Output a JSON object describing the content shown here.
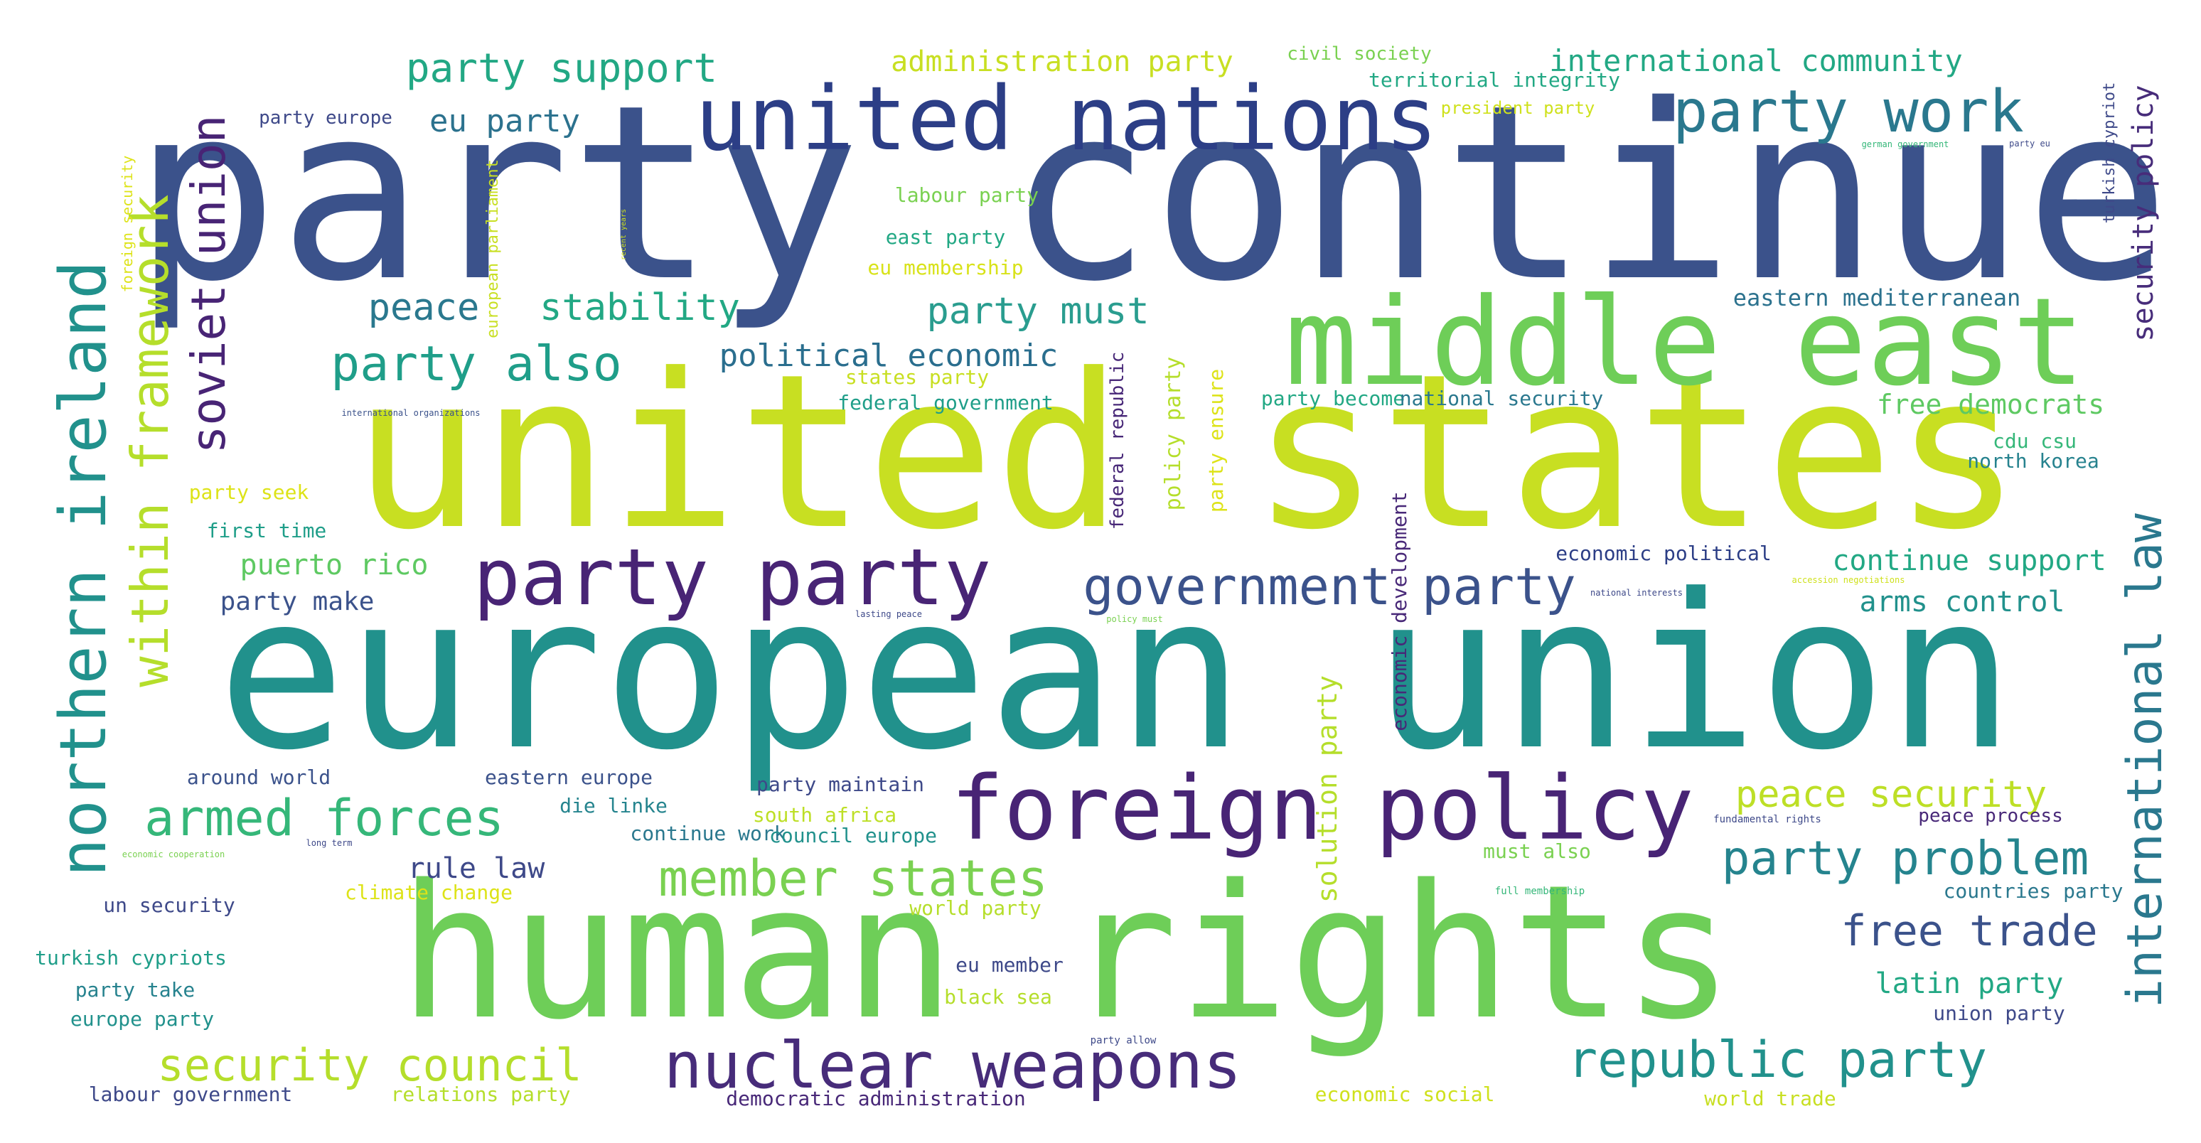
{
  "words": [
    {
      "text": "party continue",
      "color": "#3b528b"
    },
    {
      "text": "united states",
      "color": "#c8df22"
    },
    {
      "text": "european union",
      "color": "#21918c"
    },
    {
      "text": "human rights",
      "color": "#6ece58"
    },
    {
      "text": "middle east",
      "color": "#6ece58"
    },
    {
      "text": "united nations",
      "color": "#2c3e86"
    },
    {
      "text": "foreign policy",
      "color": "#482475"
    },
    {
      "text": "party party",
      "color": "#482475"
    },
    {
      "text": "nuclear weapons",
      "color": "#472c7a"
    },
    {
      "text": "northern ireland",
      "color": "#21918c"
    },
    {
      "text": "within framework",
      "color": "#b5de2b"
    },
    {
      "text": "soviet union",
      "color": "#482475"
    },
    {
      "text": "international law",
      "color": "#2a788e"
    },
    {
      "text": "party work",
      "color": "#2a788e"
    },
    {
      "text": "government party",
      "color": "#3b528b"
    },
    {
      "text": "armed forces",
      "color": "#35b779"
    },
    {
      "text": "member states",
      "color": "#7ad151"
    },
    {
      "text": "republic party",
      "color": "#21918c"
    },
    {
      "text": "security council",
      "color": "#b5de2b"
    },
    {
      "text": "party problem",
      "color": "#25848e"
    },
    {
      "text": "free trade",
      "color": "#3b528b"
    },
    {
      "text": "party support",
      "color": "#22a884"
    },
    {
      "text": "party also",
      "color": "#1f9e89"
    },
    {
      "text": "stability",
      "color": "#22a884"
    },
    {
      "text": "peace",
      "color": "#2a788e"
    },
    {
      "text": "party must",
      "color": "#2a9d8f"
    },
    {
      "text": "peace security",
      "color": "#bddf26"
    },
    {
      "text": "eu party",
      "color": "#2c728e"
    },
    {
      "text": "political economic",
      "color": "#2a6e8e"
    },
    {
      "text": "administration party",
      "color": "#c8df22"
    },
    {
      "text": "international community",
      "color": "#22a884"
    },
    {
      "text": "security policy",
      "color": "#472c7a"
    },
    {
      "text": "solution party",
      "color": "#b5de2b"
    },
    {
      "text": "free democrats",
      "color": "#5ec962"
    },
    {
      "text": "latin party",
      "color": "#22a884"
    },
    {
      "text": "rule law",
      "color": "#3e4989"
    },
    {
      "text": "puerto rico",
      "color": "#5ec962"
    },
    {
      "text": "continue support",
      "color": "#22a884"
    },
    {
      "text": "arms control",
      "color": "#21918c"
    },
    {
      "text": "eastern mediterranean",
      "color": "#2c728e"
    },
    {
      "text": "party make",
      "color": "#3b528b"
    },
    {
      "text": "economic development",
      "color": "#482878"
    },
    {
      "text": "policy party",
      "color": "#b5de2b"
    },
    {
      "text": "party ensure",
      "color": "#dde318"
    },
    {
      "text": "federal republic",
      "color": "#482878"
    },
    {
      "text": "civil society",
      "color": "#7ad151"
    },
    {
      "text": "territorial integrity",
      "color": "#22a884"
    },
    {
      "text": "president party",
      "color": "#cfe11c"
    },
    {
      "text": "labour party",
      "color": "#7ad151"
    },
    {
      "text": "east party",
      "color": "#22a884"
    },
    {
      "text": "eu membership",
      "color": "#d8e219"
    },
    {
      "text": "states party",
      "color": "#c8df22"
    },
    {
      "text": "federal government",
      "color": "#1f9e89"
    },
    {
      "text": "party become",
      "color": "#22a884"
    },
    {
      "text": "national security",
      "color": "#2a788e"
    },
    {
      "text": "cdu csu",
      "color": "#35b779"
    },
    {
      "text": "north korea",
      "color": "#26828e"
    },
    {
      "text": "economic political",
      "color": "#2c3e86"
    },
    {
      "text": "party seek",
      "color": "#dde318"
    },
    {
      "text": "first time",
      "color": "#1f9e89"
    },
    {
      "text": "around world",
      "color": "#3b528b"
    },
    {
      "text": "eastern europe",
      "color": "#3b528b"
    },
    {
      "text": "party maintain",
      "color": "#3e4989"
    },
    {
      "text": "die linke",
      "color": "#25848e"
    },
    {
      "text": "continue work",
      "color": "#2a788e"
    },
    {
      "text": "south africa",
      "color": "#bddf26"
    },
    {
      "text": "council europe",
      "color": "#21918c"
    },
    {
      "text": "climate change",
      "color": "#dde318"
    },
    {
      "text": "un security",
      "color": "#3e4989"
    },
    {
      "text": "turkish cypriots",
      "color": "#1f9e89"
    },
    {
      "text": "party take",
      "color": "#26828e"
    },
    {
      "text": "europe party",
      "color": "#21918c"
    },
    {
      "text": "labour government",
      "color": "#3e4989"
    },
    {
      "text": "relations party",
      "color": "#b5de2b"
    },
    {
      "text": "democratic administration",
      "color": "#482878"
    },
    {
      "text": "economic social",
      "color": "#cfe11c"
    },
    {
      "text": "world trade",
      "color": "#c8df22"
    },
    {
      "text": "union party",
      "color": "#3e4989"
    },
    {
      "text": "countries party",
      "color": "#2a788e"
    },
    {
      "text": "must also",
      "color": "#7ad151"
    },
    {
      "text": "peace process",
      "color": "#482878"
    },
    {
      "text": "world party",
      "color": "#b5de2b"
    },
    {
      "text": "eu member",
      "color": "#3e4989"
    },
    {
      "text": "black sea",
      "color": "#b5de2b"
    },
    {
      "text": "party europe",
      "color": "#3e4989"
    },
    {
      "text": "foreign security",
      "color": "#dde318"
    },
    {
      "text": "european parliament",
      "color": "#c8df22"
    },
    {
      "text": "recent years",
      "color": "#cfe11c"
    },
    {
      "text": "turkish cypriot",
      "color": "#3e4989"
    },
    {
      "text": "german government",
      "color": "#35b779"
    },
    {
      "text": "party eu",
      "color": "#3e4989"
    },
    {
      "text": "international organizations",
      "color": "#3b528b"
    },
    {
      "text": "national interests",
      "color": "#3e4989"
    },
    {
      "text": "accession negotiations",
      "color": "#cfe11c"
    },
    {
      "text": "lasting peace",
      "color": "#3e4989"
    },
    {
      "text": "policy must",
      "color": "#7ad151"
    },
    {
      "text": "fundamental rights",
      "color": "#3e4989"
    },
    {
      "text": "full membership",
      "color": "#35b779"
    },
    {
      "text": "party allow",
      "color": "#3e4989"
    },
    {
      "text": "economic cooperation",
      "color": "#7ad151"
    },
    {
      "text": "long term",
      "color": "#3e4989"
    }
  ]
}
